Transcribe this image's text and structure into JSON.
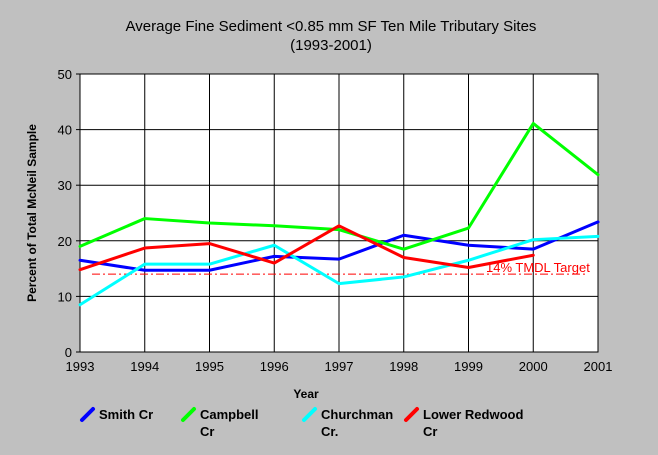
{
  "chart_data": {
    "type": "line",
    "title": "Average Fine Sediment <0.85 mm SF Ten Mile Tributary Sites",
    "subtitle": "(1993-2001)",
    "xlabel": "Year",
    "ylabel": "Percent of Total McNeil Sample",
    "x": [
      1993,
      1994,
      1995,
      1996,
      1997,
      1998,
      1999,
      2000,
      2001
    ],
    "xlim": [
      1993,
      2001
    ],
    "ylim": [
      0,
      50
    ],
    "yticks": [
      0,
      10,
      20,
      30,
      40,
      50
    ],
    "grid": true,
    "legend_position": "bottom",
    "series": [
      {
        "name": "Smith Cr",
        "color": "#0000ff",
        "values": [
          16.5,
          14.7,
          14.7,
          17.2,
          16.7,
          21.0,
          19.2,
          18.5,
          23.4
        ]
      },
      {
        "name": "Campbell Cr",
        "color": "#00ff00",
        "values": [
          19.0,
          24.0,
          23.2,
          22.7,
          22.0,
          18.5,
          22.3,
          41.1,
          31.9
        ]
      },
      {
        "name": "Churchman Cr.",
        "color": "#00ffff",
        "values": [
          8.5,
          15.8,
          15.8,
          19.2,
          12.3,
          13.5,
          16.5,
          20.2,
          20.8
        ]
      },
      {
        "name": "Lower Redwood Cr",
        "color": "#ff0000",
        "values": [
          14.8,
          18.7,
          19.5,
          16.0,
          22.7,
          17.0,
          15.2,
          17.4,
          null
        ]
      }
    ],
    "reference_line": {
      "value": 14,
      "label": "14% TMDL Target",
      "color": "#ff0000"
    }
  }
}
